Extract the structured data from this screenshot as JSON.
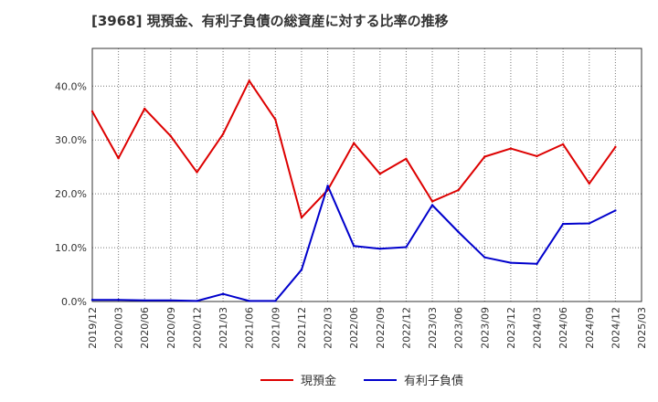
{
  "chart_data": {
    "type": "line",
    "title": "[3968]  現預金、有利子負債の総資産に対する比率の推移",
    "xlabel": "",
    "ylabel": "",
    "ylim": [
      0,
      47
    ],
    "yticks": [
      "0.0%",
      "10.0%",
      "20.0%",
      "30.0%",
      "40.0%"
    ],
    "ytick_values": [
      0,
      10,
      20,
      30,
      40
    ],
    "grid": true,
    "legend_position": "bottom-center",
    "x": [
      "2019/12",
      "2020/03",
      "2020/06",
      "2020/09",
      "2020/12",
      "2021/03",
      "2021/06",
      "2021/09",
      "2021/12",
      "2022/03",
      "2022/06",
      "2022/09",
      "2022/12",
      "2023/03",
      "2023/06",
      "2023/09",
      "2023/12",
      "2024/03",
      "2024/06",
      "2024/09",
      "2024/12",
      "2025/03"
    ],
    "series": [
      {
        "name": "現預金",
        "color": "#dd0000",
        "values": [
          35.3,
          26.6,
          35.8,
          30.7,
          24.0,
          31.1,
          41.0,
          33.8,
          15.6,
          20.7,
          29.4,
          23.7,
          26.5,
          18.6,
          20.7,
          26.9,
          28.4,
          27.0,
          29.2,
          21.9,
          28.7,
          null
        ]
      },
      {
        "name": "有利子負債",
        "color": "#0000cc",
        "values": [
          0.3,
          0.3,
          0.2,
          0.2,
          0.1,
          1.4,
          0.1,
          0.1,
          5.9,
          21.5,
          10.3,
          9.8,
          10.1,
          17.9,
          12.9,
          8.2,
          7.2,
          7.0,
          14.4,
          14.5,
          16.9,
          null
        ]
      }
    ]
  }
}
